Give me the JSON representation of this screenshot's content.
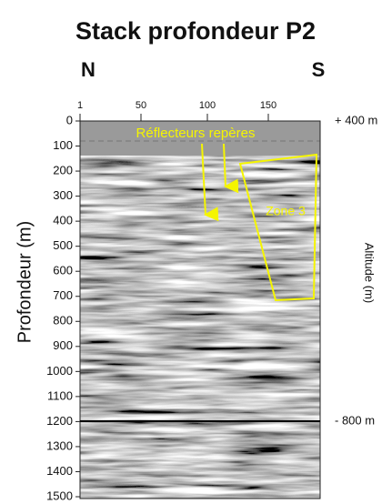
{
  "title": "Stack profondeur P2",
  "north": "N",
  "south": "S",
  "trace_axis": {
    "ticks": [
      "1",
      "50",
      "100",
      "150"
    ]
  },
  "depth_axis": {
    "label": "Profondeur (m)",
    "ticks": [
      "0",
      "100",
      "200",
      "300",
      "400",
      "500",
      "600",
      "700",
      "800",
      "900",
      "1000",
      "1100",
      "1200",
      "1300",
      "1400",
      "1500"
    ]
  },
  "altitude_axis": {
    "label": "Altitude (m)",
    "top": "+ 400 m",
    "bottom": "- 800 m"
  },
  "annotations": {
    "reflectors": "Réflecteurs repères",
    "zone": "Zone 3"
  }
}
